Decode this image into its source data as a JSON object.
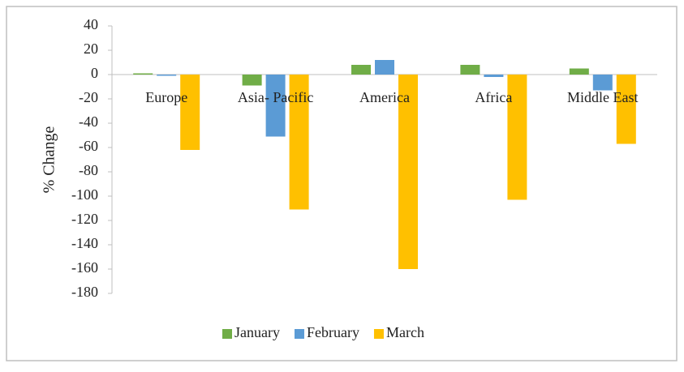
{
  "chart_data": {
    "type": "bar",
    "y_label": "% Change",
    "categories": [
      "Europe",
      "Asia- Pacific",
      "America",
      "Africa",
      "Middle East"
    ],
    "series": [
      {
        "name": "January",
        "color": "#70ad47",
        "values": [
          1,
          -9,
          8,
          8,
          5
        ]
      },
      {
        "name": "February",
        "color": "#5b9bd5",
        "values": [
          -1,
          -51,
          12,
          -2,
          -13
        ]
      },
      {
        "name": "March",
        "color": "#ffc000",
        "values": [
          -62,
          -111,
          -160,
          -103,
          -57
        ]
      }
    ],
    "ylim": [
      -180,
      40
    ],
    "yticks": [
      -180,
      -160,
      -140,
      -120,
      -100,
      -80,
      -60,
      -40,
      -20,
      0,
      20,
      40
    ],
    "legend": "bottom"
  }
}
